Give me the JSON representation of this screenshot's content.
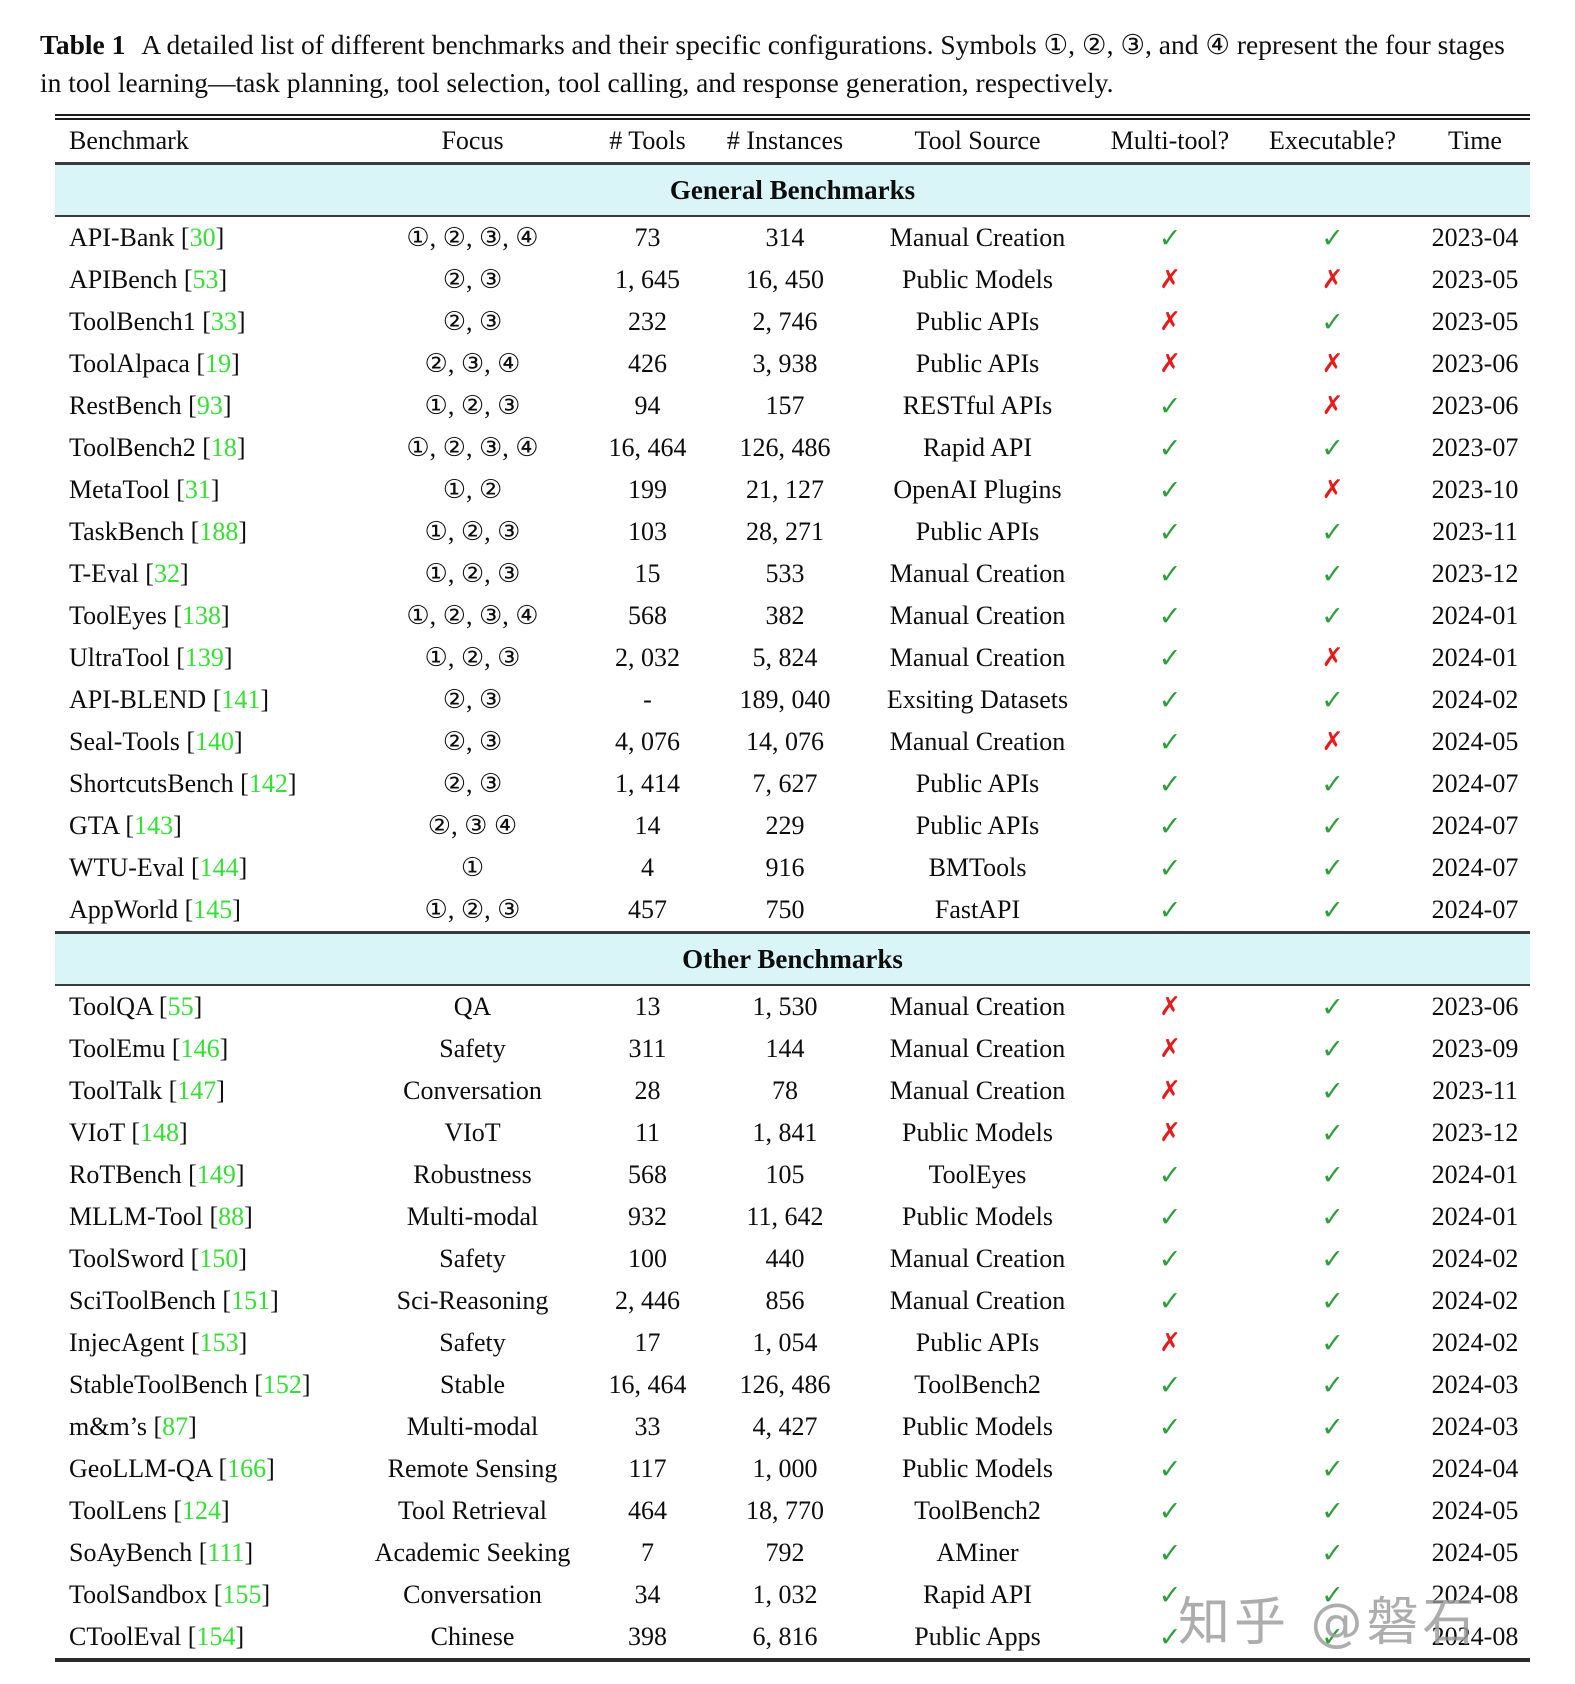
{
  "caption": {
    "label": "Table 1",
    "text": "A detailed list of different benchmarks and their specific configurations. Symbols ①, ②, ③, and ④ represent the four stages in tool learning—task planning, tool selection, tool calling, and response generation, respectively."
  },
  "columns": [
    "Benchmark",
    "Focus",
    "# Tools",
    "# Instances",
    "Tool Source",
    "Multi-tool?",
    "Executable?",
    "Time"
  ],
  "marks": {
    "yes": "✓",
    "no": "✗"
  },
  "colors": {
    "ref_green": "#35df35",
    "check_green": "#2d9e3a",
    "cross_red": "#e41c1c",
    "section_band_cyan": "#d9f5f8"
  },
  "sections": [
    {
      "title": "General Benchmarks",
      "rows": [
        {
          "name": "API-Bank",
          "ref": "30",
          "focus": "①, ②, ③, ④",
          "tools": "73",
          "instances": "314",
          "source": "Manual Creation",
          "multi": "yes",
          "exec": "yes",
          "time": "2023-04"
        },
        {
          "name": "APIBench",
          "ref": "53",
          "focus": "②, ③",
          "tools": "1, 645",
          "instances": "16, 450",
          "source": "Public Models",
          "multi": "no",
          "exec": "no",
          "time": "2023-05"
        },
        {
          "name": "ToolBench1",
          "ref": "33",
          "focus": "②, ③",
          "tools": "232",
          "instances": "2, 746",
          "source": "Public APIs",
          "multi": "no",
          "exec": "yes",
          "time": "2023-05"
        },
        {
          "name": "ToolAlpaca",
          "ref": "19",
          "focus": "②, ③, ④",
          "tools": "426",
          "instances": "3, 938",
          "source": "Public APIs",
          "multi": "no",
          "exec": "no",
          "time": "2023-06"
        },
        {
          "name": "RestBench",
          "ref": "93",
          "focus": "①, ②, ③",
          "tools": "94",
          "instances": "157",
          "source": "RESTful APIs",
          "multi": "yes",
          "exec": "no",
          "time": "2023-06"
        },
        {
          "name": "ToolBench2",
          "ref": "18",
          "focus": "①, ②, ③, ④",
          "tools": "16, 464",
          "instances": "126, 486",
          "source": "Rapid API",
          "multi": "yes",
          "exec": "yes",
          "time": "2023-07"
        },
        {
          "name": "MetaTool",
          "ref": "31",
          "focus": "①, ②",
          "tools": "199",
          "instances": "21, 127",
          "source": "OpenAI Plugins",
          "multi": "yes",
          "exec": "no",
          "time": "2023-10"
        },
        {
          "name": "TaskBench",
          "ref": "188",
          "focus": "①, ②, ③",
          "tools": "103",
          "instances": "28, 271",
          "source": "Public APIs",
          "multi": "yes",
          "exec": "yes",
          "time": "2023-11"
        },
        {
          "name": "T-Eval",
          "ref": "32",
          "focus": "①, ②, ③",
          "tools": "15",
          "instances": "533",
          "source": "Manual Creation",
          "multi": "yes",
          "exec": "yes",
          "time": "2023-12"
        },
        {
          "name": "ToolEyes",
          "ref": "138",
          "focus": "①, ②, ③, ④",
          "tools": "568",
          "instances": "382",
          "source": "Manual Creation",
          "multi": "yes",
          "exec": "yes",
          "time": "2024-01"
        },
        {
          "name": "UltraTool",
          "ref": "139",
          "focus": "①, ②, ③",
          "tools": "2, 032",
          "instances": "5, 824",
          "source": "Manual Creation",
          "multi": "yes",
          "exec": "no",
          "time": "2024-01"
        },
        {
          "name": "API-BLEND",
          "ref": "141",
          "focus": "②, ③",
          "tools": "-",
          "instances": "189, 040",
          "source": "Exsiting Datasets",
          "multi": "yes",
          "exec": "yes",
          "time": "2024-02"
        },
        {
          "name": "Seal-Tools",
          "ref": "140",
          "focus": "②, ③",
          "tools": "4, 076",
          "instances": "14, 076",
          "source": "Manual Creation",
          "multi": "yes",
          "exec": "no",
          "time": "2024-05"
        },
        {
          "name": "ShortcutsBench",
          "ref": "142",
          "focus": "②, ③",
          "tools": "1, 414",
          "instances": "7, 627",
          "source": "Public APIs",
          "multi": "yes",
          "exec": "yes",
          "time": "2024-07"
        },
        {
          "name": "GTA",
          "ref": "143",
          "focus": "②, ③ ④",
          "tools": "14",
          "instances": "229",
          "source": "Public APIs",
          "multi": "yes",
          "exec": "yes",
          "time": "2024-07"
        },
        {
          "name": "WTU-Eval",
          "ref": "144",
          "focus": "①",
          "tools": "4",
          "instances": "916",
          "source": "BMTools",
          "multi": "yes",
          "exec": "yes",
          "time": "2024-07"
        },
        {
          "name": "AppWorld",
          "ref": "145",
          "focus": "①, ②, ③",
          "tools": "457",
          "instances": "750",
          "source": "FastAPI",
          "multi": "yes",
          "exec": "yes",
          "time": "2024-07"
        }
      ]
    },
    {
      "title": "Other Benchmarks",
      "rows": [
        {
          "name": "ToolQA",
          "ref": "55",
          "focus": "QA",
          "tools": "13",
          "instances": "1, 530",
          "source": "Manual Creation",
          "multi": "no",
          "exec": "yes",
          "time": "2023-06"
        },
        {
          "name": "ToolEmu",
          "ref": "146",
          "focus": "Safety",
          "tools": "311",
          "instances": "144",
          "source": "Manual Creation",
          "multi": "no",
          "exec": "yes",
          "time": "2023-09"
        },
        {
          "name": "ToolTalk",
          "ref": "147",
          "focus": "Conversation",
          "tools": "28",
          "instances": "78",
          "source": "Manual Creation",
          "multi": "no",
          "exec": "yes",
          "time": "2023-11"
        },
        {
          "name": "VIoT",
          "ref": "148",
          "focus": "VIoT",
          "tools": "11",
          "instances": "1, 841",
          "source": "Public Models",
          "multi": "no",
          "exec": "yes",
          "time": "2023-12"
        },
        {
          "name": "RoTBench",
          "ref": "149",
          "focus": "Robustness",
          "tools": "568",
          "instances": "105",
          "source": "ToolEyes",
          "multi": "yes",
          "exec": "yes",
          "time": "2024-01"
        },
        {
          "name": "MLLM-Tool",
          "ref": "88",
          "focus": "Multi-modal",
          "tools": "932",
          "instances": "11, 642",
          "source": "Public Models",
          "multi": "yes",
          "exec": "yes",
          "time": "2024-01"
        },
        {
          "name": "ToolSword",
          "ref": "150",
          "focus": "Safety",
          "tools": "100",
          "instances": "440",
          "source": "Manual Creation",
          "multi": "yes",
          "exec": "yes",
          "time": "2024-02"
        },
        {
          "name": "SciToolBench",
          "ref": "151",
          "focus": "Sci-Reasoning",
          "tools": "2, 446",
          "instances": "856",
          "source": "Manual Creation",
          "multi": "yes",
          "exec": "yes",
          "time": "2024-02"
        },
        {
          "name": "InjecAgent",
          "ref": "153",
          "focus": "Safety",
          "tools": "17",
          "instances": "1, 054",
          "source": "Public APIs",
          "multi": "no",
          "exec": "yes",
          "time": "2024-02"
        },
        {
          "name": "StableToolBench",
          "ref": "152",
          "focus": "Stable",
          "tools": "16, 464",
          "instances": "126, 486",
          "source": "ToolBench2",
          "multi": "yes",
          "exec": "yes",
          "time": "2024-03"
        },
        {
          "name": "m&m’s",
          "ref": "87",
          "focus": "Multi-modal",
          "tools": "33",
          "instances": "4, 427",
          "source": "Public Models",
          "multi": "yes",
          "exec": "yes",
          "time": "2024-03"
        },
        {
          "name": "GeoLLM-QA",
          "ref": "166",
          "focus": "Remote Sensing",
          "tools": "117",
          "instances": "1, 000",
          "source": "Public Models",
          "multi": "yes",
          "exec": "yes",
          "time": "2024-04"
        },
        {
          "name": "ToolLens",
          "ref": "124",
          "focus": "Tool Retrieval",
          "tools": "464",
          "instances": "18, 770",
          "source": "ToolBench2",
          "multi": "yes",
          "exec": "yes",
          "time": "2024-05"
        },
        {
          "name": "SoAyBench",
          "ref": "111",
          "focus": "Academic Seeking",
          "tools": "7",
          "instances": "792",
          "source": "AMiner",
          "multi": "yes",
          "exec": "yes",
          "time": "2024-05"
        },
        {
          "name": "ToolSandbox",
          "ref": "155",
          "focus": "Conversation",
          "tools": "34",
          "instances": "1, 032",
          "source": "Rapid API",
          "multi": "yes",
          "exec": "yes",
          "time": "2024-08"
        },
        {
          "name": "CToolEval",
          "ref": "154",
          "focus": "Chinese",
          "tools": "398",
          "instances": "6, 816",
          "source": "Public Apps",
          "multi": "yes",
          "exec": "yes",
          "time": "2024-08"
        }
      ]
    }
  ],
  "watermark": "知乎 @磐石"
}
